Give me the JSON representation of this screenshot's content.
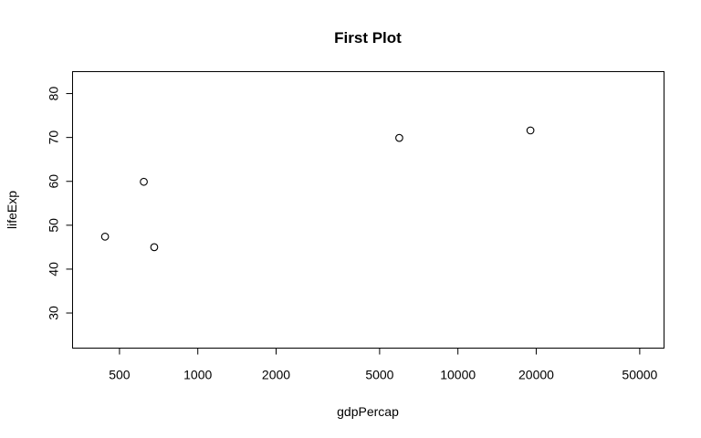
{
  "chart_data": {
    "type": "scatter",
    "title": "First Plot",
    "xlabel": "gdpPercap",
    "ylabel": "lifeExp",
    "x_scale": "log",
    "xlim": [
      330,
      62000
    ],
    "ylim": [
      22,
      85
    ],
    "x_ticks": [
      500,
      1000,
      2000,
      5000,
      10000,
      20000,
      50000
    ],
    "x_tick_labels": [
      "500",
      "1000",
      "2000",
      "5000",
      "10000",
      "20000",
      "50000"
    ],
    "y_ticks": [
      30,
      40,
      50,
      60,
      70,
      80
    ],
    "y_tick_labels": [
      "30",
      "40",
      "50",
      "60",
      "70",
      "80"
    ],
    "grid": false,
    "legend": "none",
    "points": [
      {
        "x": 440,
        "y": 47.4
      },
      {
        "x": 620,
        "y": 59.9
      },
      {
        "x": 680,
        "y": 45.0
      },
      {
        "x": 5950,
        "y": 69.9
      },
      {
        "x": 19000,
        "y": 71.6
      }
    ]
  }
}
